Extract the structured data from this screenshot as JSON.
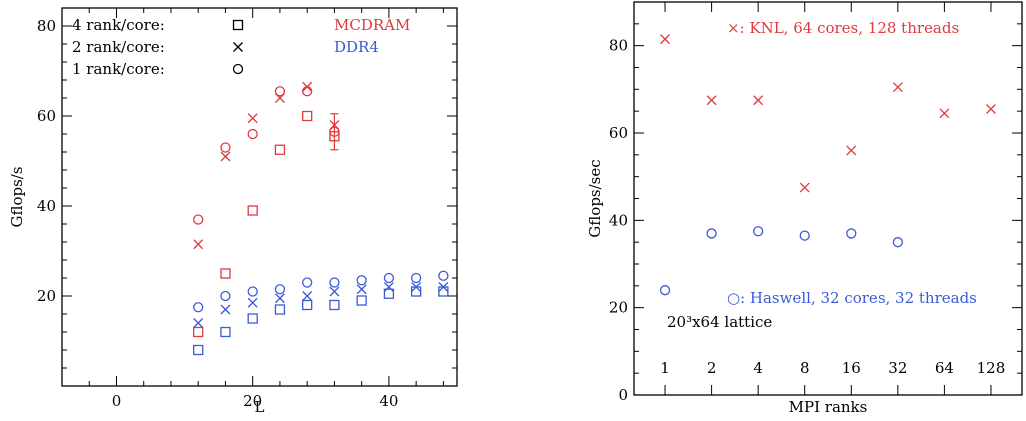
{
  "colors": {
    "mcdram": "#e0393e",
    "ddr4": "#3a5ad8",
    "axis": "#000000",
    "text": "#000000"
  },
  "chart_data": [
    {
      "type": "scatter",
      "title": "",
      "xlabel": "L",
      "ylabel": "Gflops/s",
      "xlim": [
        -8,
        50
      ],
      "ylim": [
        0,
        84
      ],
      "xticks": [
        0,
        20,
        40
      ],
      "yticks": [
        20,
        40,
        60,
        80
      ],
      "grid": false,
      "legend": {
        "markers": [
          {
            "label": "4 rank/core:",
            "marker": "square"
          },
          {
            "label": "2 rank/core:",
            "marker": "cross"
          },
          {
            "label": "1 rank/core:",
            "marker": "circle"
          }
        ],
        "colors": [
          {
            "label": "MCDRAM",
            "color": "#e0393e"
          },
          {
            "label": "DDR4",
            "color": "#3a5ad8"
          }
        ]
      },
      "series": [
        {
          "memory": "MCDRAM",
          "marker": "square",
          "color": "#e0393e",
          "x": [
            12,
            16,
            20,
            24,
            28,
            32
          ],
          "y": [
            12,
            25,
            39,
            52.5,
            60,
            55.5
          ],
          "yerr": [
            0,
            0,
            0,
            0,
            0,
            0
          ]
        },
        {
          "memory": "MCDRAM",
          "marker": "cross",
          "color": "#e0393e",
          "x": [
            12,
            16,
            20,
            24,
            28,
            32
          ],
          "y": [
            31.5,
            51,
            59.5,
            64,
            66.5,
            58
          ],
          "yerr": [
            0,
            0,
            0,
            0,
            0,
            0
          ]
        },
        {
          "memory": "MCDRAM",
          "marker": "circle",
          "color": "#e0393e",
          "x": [
            12,
            16,
            20,
            24,
            28,
            32
          ],
          "y": [
            37,
            53,
            56,
            65.5,
            65.5,
            56.5
          ],
          "yerr": [
            0,
            0,
            0,
            0,
            0,
            4
          ]
        },
        {
          "memory": "DDR4",
          "marker": "square",
          "color": "#3a5ad8",
          "x": [
            12,
            16,
            20,
            24,
            28,
            32,
            36,
            40,
            44,
            48
          ],
          "y": [
            8,
            12,
            15,
            17,
            18,
            18,
            19,
            20.5,
            21,
            21
          ],
          "yerr": [
            0,
            0,
            0,
            0,
            0,
            0,
            0,
            0,
            0,
            0
          ]
        },
        {
          "memory": "DDR4",
          "marker": "cross",
          "color": "#3a5ad8",
          "x": [
            12,
            16,
            20,
            24,
            28,
            32,
            36,
            40,
            44,
            48
          ],
          "y": [
            14,
            17,
            18.5,
            19.5,
            20,
            21,
            21.5,
            22,
            22,
            22
          ],
          "yerr": [
            0,
            0,
            0,
            0,
            0,
            0,
            0,
            0,
            0,
            0
          ]
        },
        {
          "memory": "DDR4",
          "marker": "circle",
          "color": "#3a5ad8",
          "x": [
            12,
            16,
            20,
            24,
            28,
            32,
            36,
            40,
            44,
            48
          ],
          "y": [
            17.5,
            20,
            21,
            21.5,
            23,
            23,
            23.5,
            24,
            24,
            24.5
          ],
          "yerr": [
            0,
            0,
            0,
            0,
            0,
            0,
            0,
            0,
            0,
            0
          ]
        }
      ]
    },
    {
      "type": "scatter",
      "title": "",
      "xlabel": "MPI ranks",
      "ylabel": "Gflops/sec",
      "xscale": "log2",
      "xlim": [
        1,
        128
      ],
      "ylim": [
        0,
        90
      ],
      "xticks": [
        1,
        2,
        4,
        8,
        16,
        32,
        64,
        128
      ],
      "yticks": [
        0,
        20,
        40,
        60,
        80
      ],
      "grid": false,
      "annotation": "20³x64 lattice",
      "series": [
        {
          "name": "KNL, 64 cores, 128 threads",
          "legend_label": "×: KNL, 64 cores, 128 threads",
          "marker": "cross",
          "color": "#e0393e",
          "x": [
            1,
            2,
            4,
            8,
            16,
            32,
            64,
            128
          ],
          "y": [
            81.5,
            67.5,
            67.5,
            47.5,
            56,
            70.5,
            64.5,
            65.5
          ]
        },
        {
          "name": "Haswell, 32 cores, 32 threads",
          "legend_label": "○: Haswell, 32 cores, 32 threads",
          "marker": "circle",
          "color": "#3a5ad8",
          "x": [
            1,
            2,
            4,
            8,
            16,
            32
          ],
          "y": [
            24,
            37,
            37.5,
            36.5,
            37,
            35
          ]
        }
      ]
    }
  ]
}
